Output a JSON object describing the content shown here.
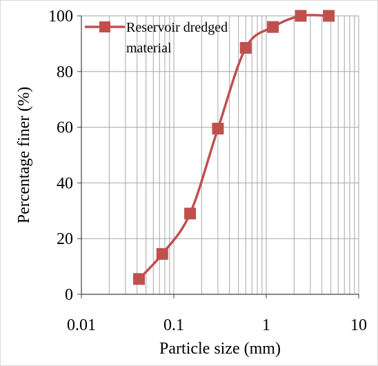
{
  "chart_data": {
    "type": "line",
    "xlabel": "Particle size (mm)",
    "ylabel": "Percentage finer (%)",
    "xscale": "log",
    "xlim": [
      0.01,
      10
    ],
    "ylim": [
      0,
      100
    ],
    "x_ticks": [
      "0.01",
      "0.1",
      "1",
      "10"
    ],
    "y_ticks": [
      "0",
      "20",
      "40",
      "60",
      "80",
      "100"
    ],
    "grid": "on",
    "legend_position": "top-left",
    "series": [
      {
        "name": "Reservoir dredged material",
        "legend_lines": [
          "Reservoir dredged",
          "material"
        ],
        "color": "#c0504d",
        "marker": "square",
        "x": [
          0.042,
          0.075,
          0.15,
          0.3,
          0.6,
          1.18,
          2.36,
          4.75
        ],
        "y": [
          5.5,
          14.5,
          29,
          59.5,
          88.5,
          96,
          100,
          100
        ]
      }
    ]
  }
}
